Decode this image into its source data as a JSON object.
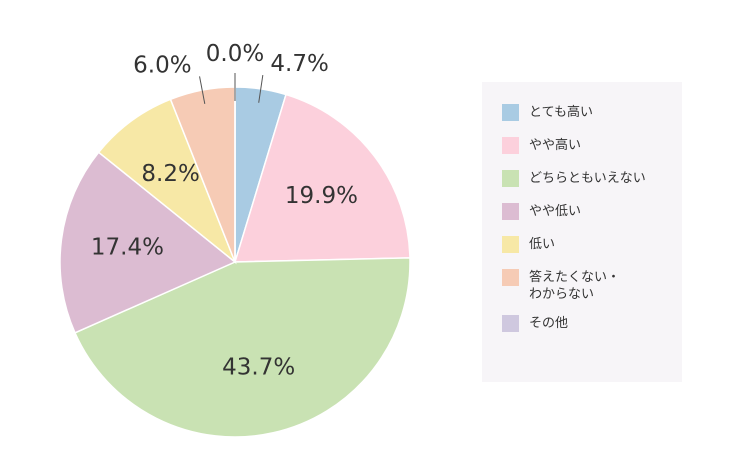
{
  "chart_data": {
    "type": "pie",
    "categories": [
      "とても高い",
      "やや高い",
      "どちらともいえない",
      "やや低い",
      "低い",
      "答えたくない・わからない",
      "その他"
    ],
    "values": [
      4.7,
      19.9,
      43.7,
      17.4,
      8.2,
      6.0,
      0.0
    ],
    "value_labels": [
      "4.7%",
      "19.9%",
      "43.7%",
      "17.4%",
      "8.2%",
      "6.0%",
      "0.0%"
    ],
    "colors": [
      "#a9cbe3",
      "#fcd0dc",
      "#c9e2b3",
      "#dcbcd2",
      "#f7e8a6",
      "#f6cbb5",
      "#cfc8df"
    ],
    "legend": "right"
  }
}
